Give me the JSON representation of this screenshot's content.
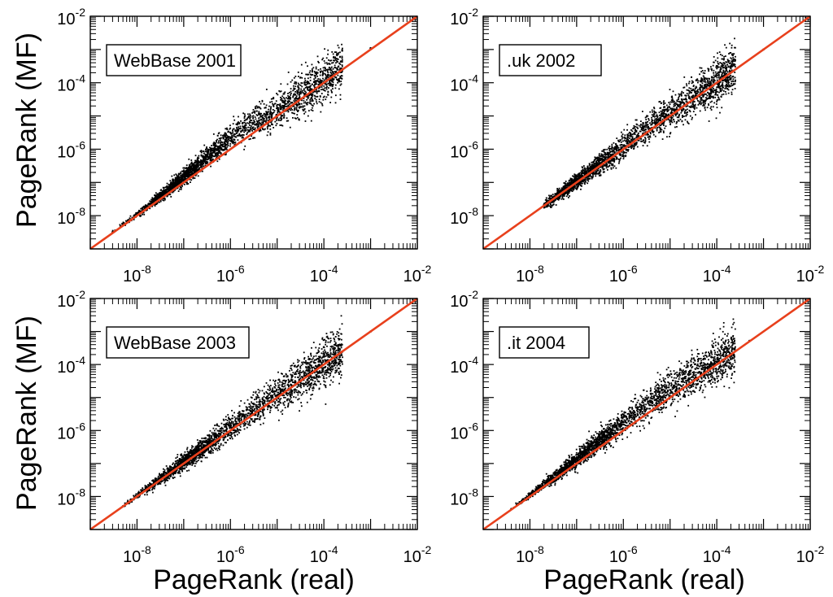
{
  "figure": {
    "ylabel": "PageRank (MF)",
    "xlabel": "PageRank (real)"
  },
  "line_color": "#e8401c",
  "point_color": "#000000",
  "chart_data": [
    {
      "type": "scatter",
      "panel_label": "WebBase 2001",
      "xscale": "log",
      "yscale": "log",
      "xlim": [
        1e-09,
        0.01
      ],
      "ylim": [
        1e-09,
        0.01
      ],
      "xticks": [
        {
          "base": "10",
          "exp": "-8"
        },
        {
          "base": "10",
          "exp": "-6"
        },
        {
          "base": "10",
          "exp": "-4"
        },
        {
          "base": "10",
          "exp": "-2"
        }
      ],
      "yticks": [
        {
          "base": "10",
          "exp": "-8"
        },
        {
          "base": "10",
          "exp": "-6"
        },
        {
          "base": "10",
          "exp": "-4"
        },
        {
          "base": "10",
          "exp": "-2"
        }
      ],
      "reference_line": {
        "x": [
          1e-09,
          0.01
        ],
        "y": [
          1e-09,
          0.01
        ]
      },
      "series": [
        {
          "x": [
            3e-09,
            5e-09,
            8e-09,
            1.2e-08,
            2e-08,
            3e-08,
            5e-08,
            8e-08,
            1.2e-07,
            2e-07,
            3e-07,
            5e-07,
            8e-07,
            1.2e-06,
            2e-06,
            3e-06,
            5e-06,
            8e-06,
            1.2e-05,
            2e-05,
            3e-05,
            5e-05,
            8e-05,
            0.00015,
            0.001
          ],
          "y": [
            3.2e-09,
            5.5e-09,
            8.5e-09,
            1.3e-08,
            2.3e-08,
            3.6e-08,
            6.5e-08,
            1.1e-07,
            1.8e-07,
            3.3e-07,
            5.4e-07,
            1e-06,
            1.7e-06,
            2.8e-06,
            4.4e-06,
            6.2e-06,
            8.5e-06,
            1.2e-05,
            1.6e-05,
            2.5e-05,
            3.5e-05,
            6e-05,
            9e-05,
            0.00017,
            0.0011
          ]
        }
      ]
    },
    {
      "type": "scatter",
      "panel_label": ".uk 2002",
      "xscale": "log",
      "yscale": "log",
      "xlim": [
        1e-09,
        0.01
      ],
      "ylim": [
        1e-09,
        0.01
      ],
      "xticks": [
        {
          "base": "10",
          "exp": "-8"
        },
        {
          "base": "10",
          "exp": "-6"
        },
        {
          "base": "10",
          "exp": "-4"
        },
        {
          "base": "10",
          "exp": "-2"
        }
      ],
      "yticks": [
        {
          "base": "10",
          "exp": "-8"
        },
        {
          "base": "10",
          "exp": "-6"
        },
        {
          "base": "10",
          "exp": "-4"
        },
        {
          "base": "10",
          "exp": "-2"
        }
      ],
      "reference_line": {
        "x": [
          1e-09,
          0.01
        ],
        "y": [
          1e-09,
          0.01
        ]
      },
      "series": [
        {
          "x": [
            2e-08,
            3e-08,
            5e-08,
            8e-08,
            1.2e-07,
            2e-07,
            3e-07,
            5e-07,
            8e-07,
            1.2e-06,
            2e-06,
            3e-06,
            5e-06,
            8e-06,
            1.2e-05,
            2e-05,
            3e-05,
            5e-05,
            8e-05,
            0.00015,
            0.001
          ],
          "y": [
            2.1e-08,
            3.1e-08,
            5.3e-08,
            8.6e-08,
            1.3e-07,
            2.2e-07,
            3.4e-07,
            5.8e-07,
            9.6e-07,
            1.5e-06,
            2.6e-06,
            3.9e-06,
            6.3e-06,
            1e-05,
            1.5e-05,
            2.4e-05,
            3.6e-05,
            5.5e-05,
            8.5e-05,
            0.00016,
            0.001
          ]
        }
      ]
    },
    {
      "type": "scatter",
      "panel_label": "WebBase 2003",
      "xscale": "log",
      "yscale": "log",
      "xlim": [
        1e-09,
        0.01
      ],
      "ylim": [
        1e-09,
        0.01
      ],
      "xticks": [
        {
          "base": "10",
          "exp": "-8"
        },
        {
          "base": "10",
          "exp": "-6"
        },
        {
          "base": "10",
          "exp": "-4"
        },
        {
          "base": "10",
          "exp": "-2"
        }
      ],
      "yticks": [
        {
          "base": "10",
          "exp": "-8"
        },
        {
          "base": "10",
          "exp": "-6"
        },
        {
          "base": "10",
          "exp": "-4"
        },
        {
          "base": "10",
          "exp": "-2"
        }
      ],
      "reference_line": {
        "x": [
          1e-09,
          0.01
        ],
        "y": [
          1e-09,
          0.01
        ]
      },
      "series": [
        {
          "x": [
            5e-09,
            8e-09,
            1.2e-08,
            2e-08,
            3e-08,
            5e-08,
            8e-08,
            1.2e-07,
            2e-07,
            3e-07,
            5e-07,
            8e-07,
            1.2e-06,
            2e-06,
            3e-06,
            5e-06,
            8e-06,
            1.2e-05,
            2e-05,
            3e-05,
            5e-05,
            8e-05,
            0.00015,
            0.001
          ],
          "y": [
            5.1e-09,
            8.2e-09,
            1.25e-08,
            2.1e-08,
            3.2e-08,
            5.4e-08,
            8.8e-08,
            1.35e-07,
            2.3e-07,
            3.5e-07,
            6e-07,
            1e-06,
            1.55e-06,
            2.7e-06,
            4e-06,
            6.4e-06,
            1e-05,
            1.5e-05,
            2.4e-05,
            3.5e-05,
            5.6e-05,
            8.6e-05,
            0.00016,
            0.001
          ]
        }
      ]
    },
    {
      "type": "scatter",
      "panel_label": ".it 2004",
      "xscale": "log",
      "yscale": "log",
      "xlim": [
        1e-09,
        0.01
      ],
      "ylim": [
        1e-09,
        0.01
      ],
      "xticks": [
        {
          "base": "10",
          "exp": "-8"
        },
        {
          "base": "10",
          "exp": "-6"
        },
        {
          "base": "10",
          "exp": "-4"
        },
        {
          "base": "10",
          "exp": "-2"
        }
      ],
      "yticks": [
        {
          "base": "10",
          "exp": "-8"
        },
        {
          "base": "10",
          "exp": "-6"
        },
        {
          "base": "10",
          "exp": "-4"
        },
        {
          "base": "10",
          "exp": "-2"
        }
      ],
      "reference_line": {
        "x": [
          1e-09,
          0.01
        ],
        "y": [
          1e-09,
          0.01
        ]
      },
      "series": [
        {
          "x": [
            4e-09,
            6e-09,
            1e-08,
            1.5e-08,
            2.5e-08,
            4e-08,
            6e-08,
            1e-07,
            1.5e-07,
            2.5e-07,
            4e-07,
            6e-07,
            1e-06,
            1.5e-06,
            2.5e-06,
            4e-06,
            6e-06,
            1e-05,
            1.5e-05,
            2.5e-05,
            4e-05,
            6e-05,
            0.0001,
            0.0002,
            0.0005
          ],
          "y": [
            4.2e-09,
            6.4e-09,
            1.1e-08,
            1.7e-08,
            2.9e-08,
            4.8e-08,
            7.5e-08,
            1.3e-07,
            2.1e-07,
            3.6e-07,
            6.2e-07,
            1e-06,
            1.8e-06,
            2.9e-06,
            4.8e-06,
            7.6e-06,
            1.1e-05,
            1.7e-05,
            2.5e-05,
            3.8e-05,
            5.6e-05,
            8e-05,
            0.00012,
            0.00021,
            0.00052
          ]
        }
      ]
    }
  ]
}
